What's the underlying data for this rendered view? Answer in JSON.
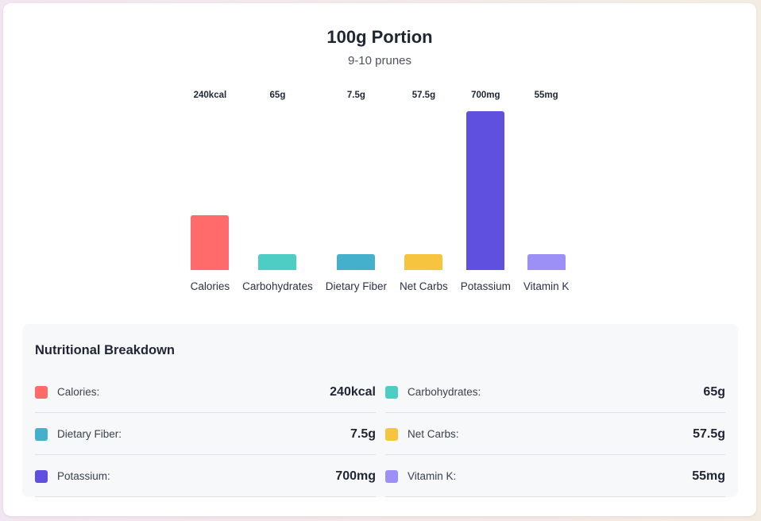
{
  "title": "100g Portion",
  "subtitle": "9-10 prunes",
  "chart_data": {
    "type": "bar",
    "categories": [
      "Calories",
      "Carbohydrates",
      "Dietary Fiber",
      "Net Carbs",
      "Potassium",
      "Vitamin K"
    ],
    "values": [
      240,
      65,
      7.5,
      57.5,
      700,
      55
    ],
    "value_labels": [
      "240kcal",
      "65g",
      "7.5g",
      "57.5g",
      "700mg",
      "55mg"
    ],
    "colors": [
      "#ff6b6b",
      "#4ecdc4",
      "#45b0cc",
      "#f6c43f",
      "#6050df",
      "#9c90f6"
    ],
    "grid": false
  },
  "breakdown": {
    "title": "Nutritional Breakdown",
    "items": [
      {
        "label": "Calories:",
        "value": "240kcal"
      },
      {
        "label": "Carbohydrates:",
        "value": "65g"
      },
      {
        "label": "Dietary Fiber:",
        "value": "7.5g"
      },
      {
        "label": "Net Carbs:",
        "value": "57.5g"
      },
      {
        "label": "Potassium:",
        "value": "700mg"
      },
      {
        "label": "Vitamin K:",
        "value": "55mg"
      }
    ]
  }
}
